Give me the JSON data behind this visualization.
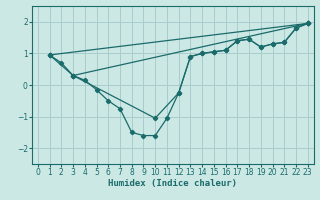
{
  "xlabel": "Humidex (Indice chaleur)",
  "ylabel": "",
  "xlim": [
    -0.5,
    23.5
  ],
  "ylim": [
    -2.5,
    2.5
  ],
  "xticks": [
    0,
    1,
    2,
    3,
    4,
    5,
    6,
    7,
    8,
    9,
    10,
    11,
    12,
    13,
    14,
    15,
    16,
    17,
    18,
    19,
    20,
    21,
    22,
    23
  ],
  "yticks": [
    -2,
    -1,
    0,
    1,
    2
  ],
  "bg_color": "#cce8e4",
  "grid_color": "#aacccc",
  "line_color": "#1a6b6b",
  "lines": [
    {
      "x": [
        1,
        2,
        3,
        4,
        5,
        6,
        7,
        8,
        9,
        10,
        11,
        12,
        13,
        14,
        15,
        16,
        17,
        18,
        19,
        20,
        21,
        22,
        23
      ],
      "y": [
        0.95,
        0.7,
        0.3,
        0.15,
        -0.15,
        -0.5,
        -0.75,
        -1.5,
        -1.6,
        -1.6,
        -1.05,
        -0.25,
        0.9,
        1.0,
        1.05,
        1.1,
        1.4,
        1.45,
        1.2,
        1.3,
        1.35,
        1.8,
        1.95
      ]
    },
    {
      "x": [
        1,
        3,
        10,
        12,
        13,
        14,
        15,
        16,
        17,
        18,
        19,
        20,
        21,
        22,
        23
      ],
      "y": [
        0.95,
        0.3,
        -1.05,
        -0.25,
        0.9,
        1.0,
        1.05,
        1.1,
        1.4,
        1.45,
        1.2,
        1.3,
        1.35,
        1.8,
        1.95
      ]
    },
    {
      "x": [
        3,
        23
      ],
      "y": [
        0.3,
        1.95
      ]
    },
    {
      "x": [
        1,
        23
      ],
      "y": [
        0.95,
        1.95
      ]
    }
  ]
}
